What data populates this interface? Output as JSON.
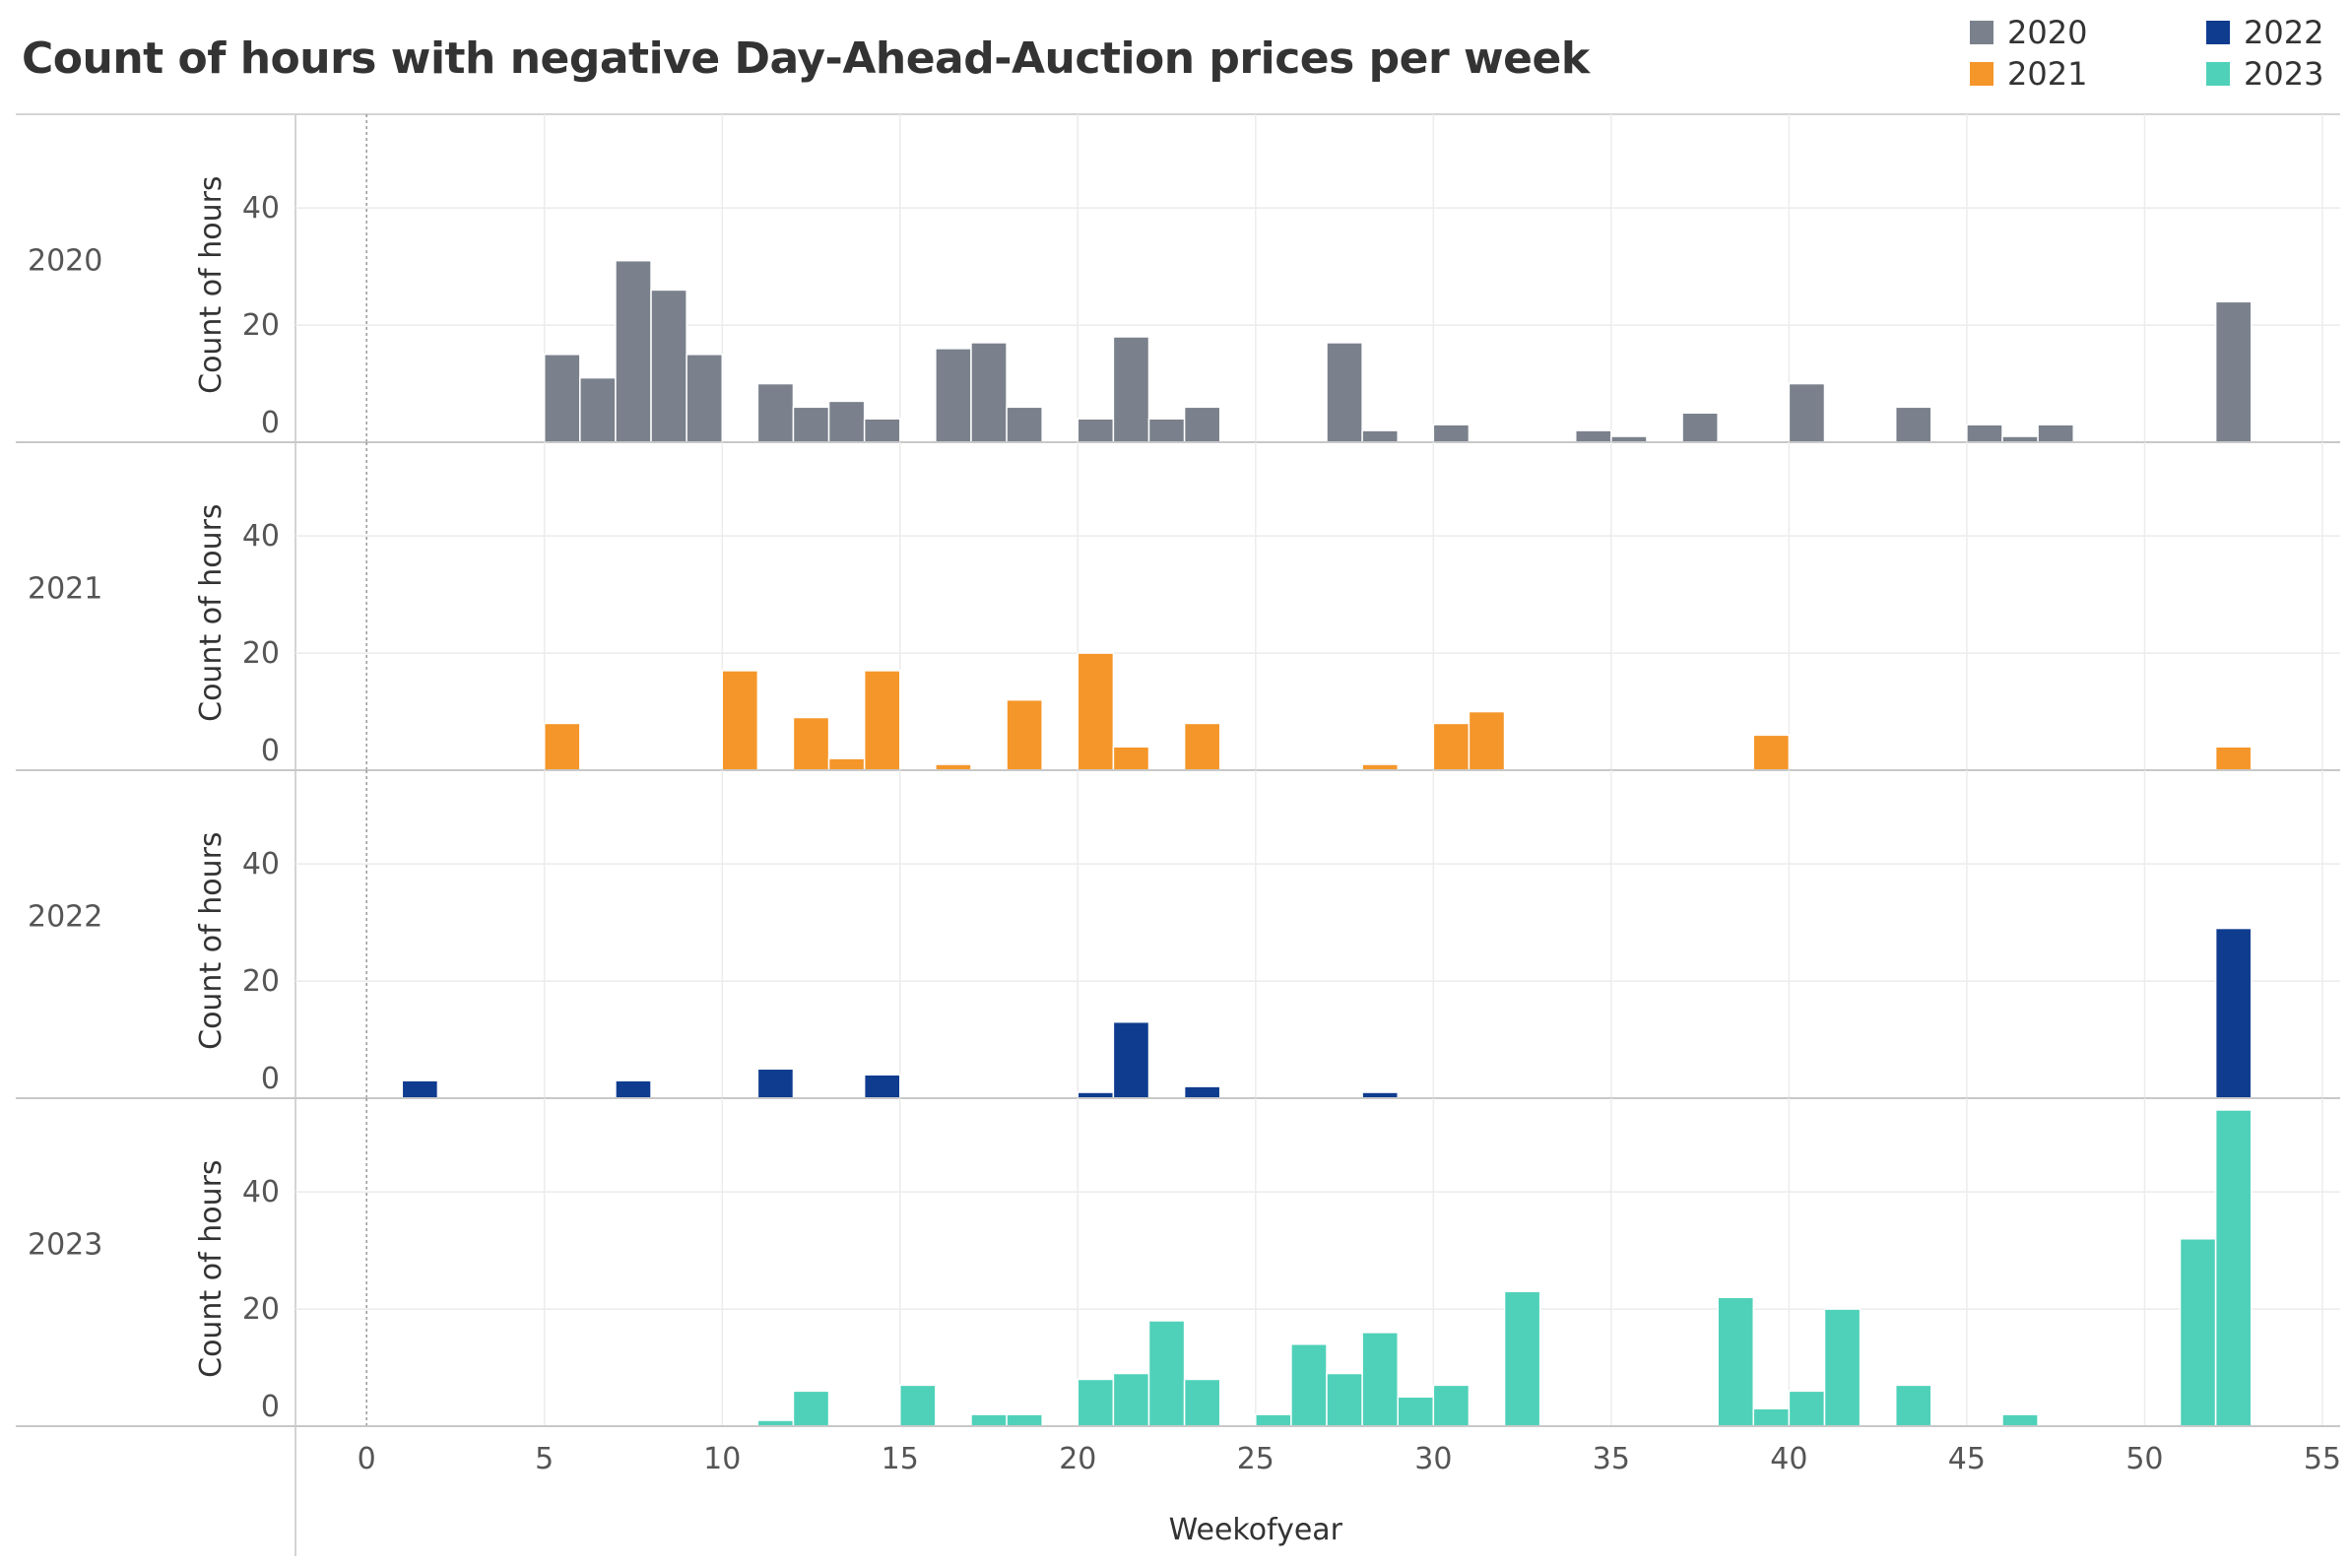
{
  "title": "Count of hours with negative Day-Ahead-Auction prices per week",
  "legend": [
    {
      "label": "2020",
      "color": "#7a818c"
    },
    {
      "label": "2021",
      "color": "#f5962a"
    },
    {
      "label": "2022",
      "color": "#0f3c8f"
    },
    {
      "label": "2023",
      "color": "#4fd1b9"
    }
  ],
  "chart_data": {
    "type": "bar",
    "xlabel": "Weekofyear",
    "ylabel": "Count of hours",
    "xlim": [
      -2,
      55.5
    ],
    "ylim": [
      0,
      55
    ],
    "x_ticks": [
      0,
      5,
      10,
      15,
      20,
      25,
      30,
      35,
      40,
      45,
      50,
      55
    ],
    "y_ticks": [
      0,
      20,
      40
    ],
    "grid": true,
    "legend_position": "top-right",
    "panels": [
      {
        "name": "2020",
        "color": "#7a818c",
        "bars": [
          [
            5,
            15
          ],
          [
            6,
            11
          ],
          [
            7,
            31
          ],
          [
            8,
            26
          ],
          [
            9,
            15
          ],
          [
            11,
            10
          ],
          [
            12,
            6
          ],
          [
            13,
            7
          ],
          [
            14,
            4
          ],
          [
            16,
            16
          ],
          [
            17,
            17
          ],
          [
            18,
            6
          ],
          [
            20,
            4
          ],
          [
            21,
            18
          ],
          [
            22,
            4
          ],
          [
            23,
            6
          ],
          [
            27,
            17
          ],
          [
            28,
            2
          ],
          [
            30,
            3
          ],
          [
            34,
            2
          ],
          [
            35,
            1
          ],
          [
            37,
            5
          ],
          [
            40,
            10
          ],
          [
            43,
            6
          ],
          [
            45,
            3
          ],
          [
            46,
            1
          ],
          [
            47,
            3
          ],
          [
            52,
            24
          ]
        ]
      },
      {
        "name": "2021",
        "color": "#f5962a",
        "bars": [
          [
            5,
            8
          ],
          [
            10,
            17
          ],
          [
            12,
            9
          ],
          [
            13,
            2
          ],
          [
            14,
            17
          ],
          [
            16,
            1
          ],
          [
            18,
            12
          ],
          [
            20,
            20
          ],
          [
            21,
            4
          ],
          [
            23,
            8
          ],
          [
            28,
            1
          ],
          [
            30,
            8
          ],
          [
            31,
            10
          ],
          [
            39,
            6
          ],
          [
            52,
            4
          ]
        ]
      },
      {
        "name": "2022",
        "color": "#0f3c8f",
        "bars": [
          [
            1,
            3
          ],
          [
            7,
            3
          ],
          [
            11,
            5
          ],
          [
            14,
            4
          ],
          [
            20,
            1
          ],
          [
            21,
            13
          ],
          [
            23,
            2
          ],
          [
            28,
            1
          ],
          [
            52,
            29
          ]
        ]
      },
      {
        "name": "2023",
        "color": "#4fd1b9",
        "bars": [
          [
            11,
            1
          ],
          [
            12,
            6
          ],
          [
            15,
            7
          ],
          [
            17,
            2
          ],
          [
            18,
            2
          ],
          [
            20,
            8
          ],
          [
            21,
            9
          ],
          [
            22,
            18
          ],
          [
            23,
            8
          ],
          [
            25,
            2
          ],
          [
            26,
            14
          ],
          [
            27,
            9
          ],
          [
            28,
            16
          ],
          [
            29,
            5
          ],
          [
            30,
            7
          ],
          [
            32,
            23
          ],
          [
            38,
            22
          ],
          [
            39,
            3
          ],
          [
            40,
            6
          ],
          [
            41,
            20
          ],
          [
            43,
            7
          ],
          [
            46,
            2
          ],
          [
            51,
            32
          ],
          [
            52,
            54
          ]
        ]
      }
    ]
  }
}
